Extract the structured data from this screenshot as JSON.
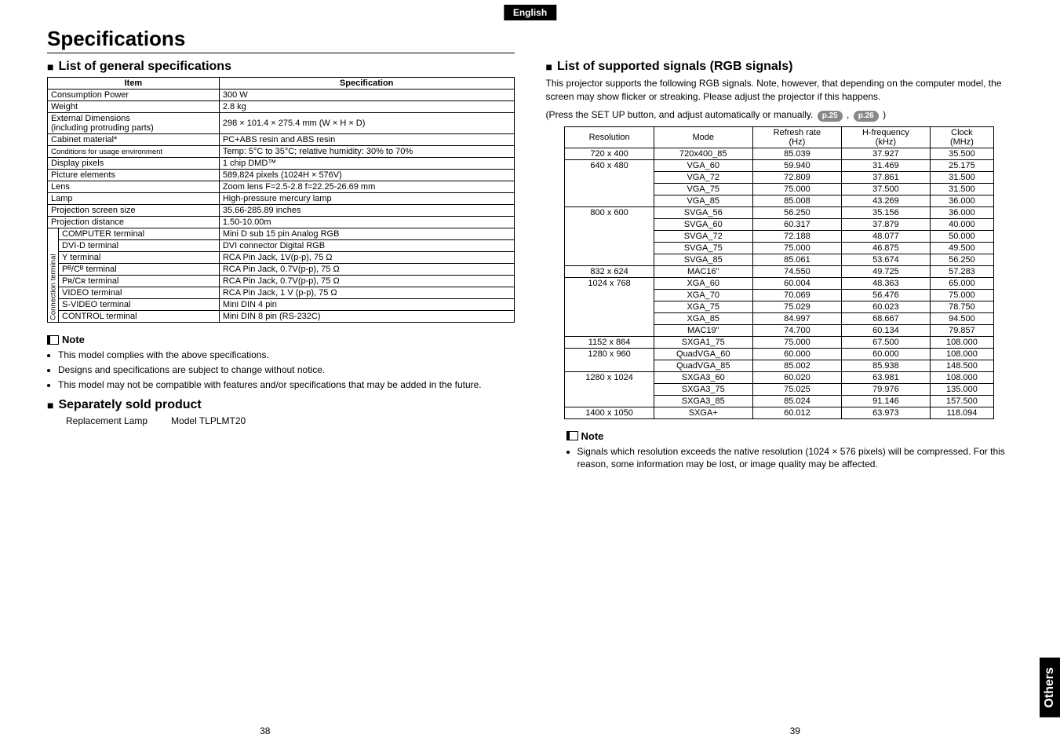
{
  "lang_label": "English",
  "title": "Specifications",
  "left": {
    "section1_title": "List of general specifications",
    "spec_table": {
      "header_item": "Item",
      "header_spec": "Specification",
      "rows": [
        {
          "item": "Consumption Power",
          "spec": "300 W"
        },
        {
          "item": "Weight",
          "spec": "2.8 kg"
        },
        {
          "item": "External Dimensions\n(including protruding parts)",
          "spec": "298 × 101.4 × 275.4 mm (W × H × D)"
        },
        {
          "item": "Cabinet material*",
          "spec": "PC+ABS resin and ABS resin"
        },
        {
          "item": "Conditions for usage environment",
          "spec": "Temp: 5°C to 35°C; relative humidity: 30% to 70%"
        },
        {
          "item": "Display pixels",
          "spec": "1 chip DMD™"
        },
        {
          "item": "Picture elements",
          "spec": "589,824 pixels (1024H × 576V)"
        },
        {
          "item": "Lens",
          "spec": "Zoom lens     F=2.5-2.8   f=22.25-26.69 mm"
        },
        {
          "item": "Lamp",
          "spec": "High-pressure mercury lamp"
        },
        {
          "item": "Projection screen size",
          "spec": "35.66-285.89 inches"
        },
        {
          "item": "Projection distance",
          "spec": "1.50-10.00m"
        }
      ],
      "conn_label": "Connection terminal",
      "conn_rows": [
        {
          "item": "COMPUTER terminal",
          "spec": "Mini D sub 15 pin   Analog RGB"
        },
        {
          "item": "DVI-D terminal",
          "spec": "DVI connector  Digital RGB"
        },
        {
          "item": "Y terminal",
          "spec": "RCA Pin Jack, 1V(p-p), 75 Ω"
        },
        {
          "item": "Pᴮ/Cᴮ terminal",
          "spec": "RCA Pin Jack, 0.7V(p-p), 75 Ω"
        },
        {
          "item": "Pʀ/Cʀ terminal",
          "spec": "RCA Pin Jack, 0.7V(p-p), 75 Ω"
        },
        {
          "item": "VIDEO  terminal",
          "spec": "RCA Pin Jack, 1 V (p-p), 75 Ω"
        },
        {
          "item": "S-VIDEO terminal",
          "spec": "Mini DIN 4 pin"
        },
        {
          "item": "CONTROL terminal",
          "spec": "Mini DIN 8 pin (RS-232C)"
        }
      ]
    },
    "note_title": "Note",
    "notes": [
      "This model complies with the above specifications.",
      "Designs and specifications are subject to change without notice.",
      "This model may not be compatible with features and/or specifications that may be added in the future."
    ],
    "section2_title": "Separately sold product",
    "sep_item": "Replacement Lamp",
    "sep_model": "Model TLPLMT20",
    "page_num": "38"
  },
  "right": {
    "section_title": "List of supported signals (RGB signals)",
    "intro1": "This projector supports the following RGB signals. Note, however, that depending on the computer model, the screen may show flicker or streaking. Please adjust the projector if this happens.",
    "intro2_pre": "(Press the SET UP button, and adjust automatically or manually.",
    "pill1": "p.25",
    "intro2_mid": " , ",
    "pill2": "p.26",
    "intro2_post": " )",
    "sig_table": {
      "headers": [
        "Resolution",
        "Mode",
        "Refresh rate\n(Hz)",
        "H-frequency\n(kHz)",
        "Clock\n(MHz)"
      ],
      "groups": [
        {
          "res": "720 x 400",
          "rows": [
            [
              "720x400_85",
              "85.039",
              "37.927",
              "35.500"
            ]
          ]
        },
        {
          "res": "640 x 480",
          "rows": [
            [
              "VGA_60",
              "59.940",
              "31.469",
              "25.175"
            ],
            [
              "VGA_72",
              "72.809",
              "37.861",
              "31.500"
            ],
            [
              "VGA_75",
              "75.000",
              "37.500",
              "31.500"
            ],
            [
              "VGA_85",
              "85.008",
              "43.269",
              "36.000"
            ]
          ]
        },
        {
          "res": "800 x 600",
          "rows": [
            [
              "SVGA_56",
              "56.250",
              "35.156",
              "36.000"
            ],
            [
              "SVGA_60",
              "60.317",
              "37.879",
              "40.000"
            ],
            [
              "SVGA_72",
              "72.188",
              "48.077",
              "50.000"
            ],
            [
              "SVGA_75",
              "75.000",
              "46.875",
              "49.500"
            ],
            [
              "SVGA_85",
              "85.061",
              "53.674",
              "56.250"
            ]
          ]
        },
        {
          "res": "832 x 624",
          "rows": [
            [
              "MAC16\"",
              "74.550",
              "49.725",
              "57.283"
            ]
          ]
        },
        {
          "res": "1024 x 768",
          "rows": [
            [
              "XGA_60",
              "60.004",
              "48.363",
              "65.000"
            ],
            [
              "XGA_70",
              "70.069",
              "56.476",
              "75.000"
            ],
            [
              "XGA_75",
              "75.029",
              "60.023",
              "78.750"
            ],
            [
              "XGA_85",
              "84.997",
              "68.667",
              "94.500"
            ],
            [
              "MAC19\"",
              "74.700",
              "60.134",
              "79.857"
            ]
          ]
        },
        {
          "res": "1152 x 864",
          "rows": [
            [
              "SXGA1_75",
              "75.000",
              "67.500",
              "108.000"
            ]
          ]
        },
        {
          "res": "1280 x 960",
          "rows": [
            [
              "QuadVGA_60",
              "60.000",
              "60.000",
              "108.000"
            ],
            [
              "QuadVGA_85",
              "85.002",
              "85.938",
              "148.500"
            ]
          ]
        },
        {
          "res": "1280 x 1024",
          "rows": [
            [
              "SXGA3_60",
              "60.020",
              "63.981",
              "108.000"
            ],
            [
              "SXGA3_75",
              "75.025",
              "79.976",
              "135.000"
            ],
            [
              "SXGA3_85",
              "85.024",
              "91.146",
              "157.500"
            ]
          ]
        },
        {
          "res": "1400 x 1050",
          "rows": [
            [
              "SXGA+",
              "60.012",
              "63.973",
              "118.094"
            ]
          ]
        }
      ]
    },
    "note_title": "Note",
    "notes": [
      "Signals which resolution exceeds the native resolution (1024 × 576 pixels) will be compressed. For this reason, some information may be lost, or image quality may be affected."
    ],
    "page_num": "39",
    "side_tab": "Others"
  }
}
